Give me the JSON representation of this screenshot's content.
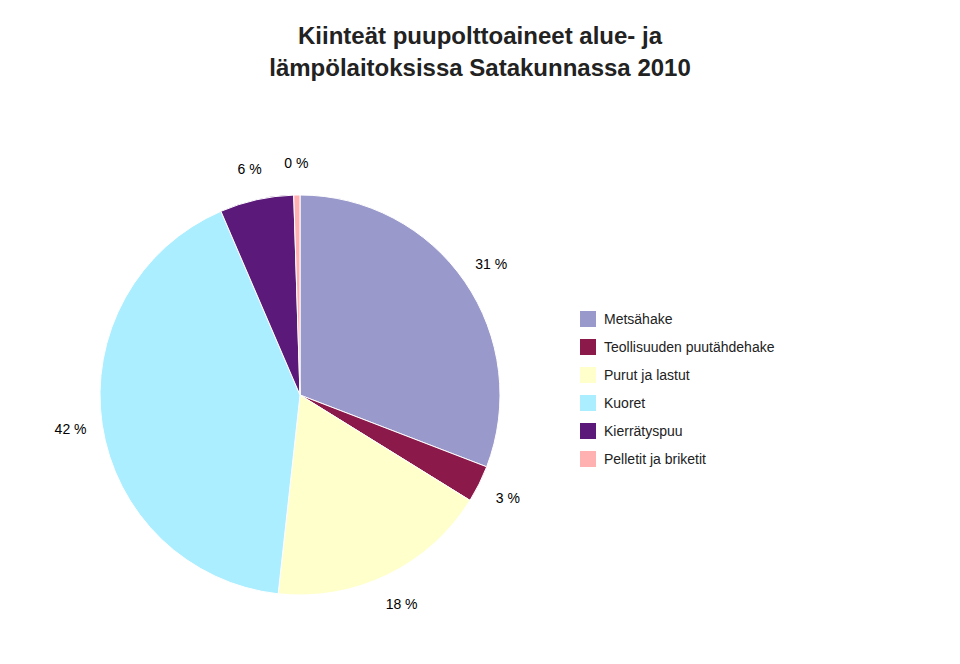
{
  "chart_data": {
    "type": "pie",
    "title": "Kiinteät puupolttoaineet alue- ja",
    "subtitle": "lämpölaitoksissa Satakunnassa 2010",
    "categories": [
      "Metsähake",
      "Teollisuuden puutähdehake",
      "Purut ja lastut",
      "Kuoret",
      "Kierrätyspuu",
      "Pelletit ja briketit"
    ],
    "values": [
      31,
      3,
      18,
      42,
      6,
      0.5
    ],
    "value_labels": [
      "31 %",
      "3 %",
      "18 %",
      "42 %",
      "6 %",
      "0 %"
    ],
    "colors": [
      "#9999CC",
      "#8B1A4A",
      "#FFFFCC",
      "#AAEEFF",
      "#5B1A7A",
      "#FFB0B0"
    ],
    "data_labels": true,
    "legend": "right"
  }
}
